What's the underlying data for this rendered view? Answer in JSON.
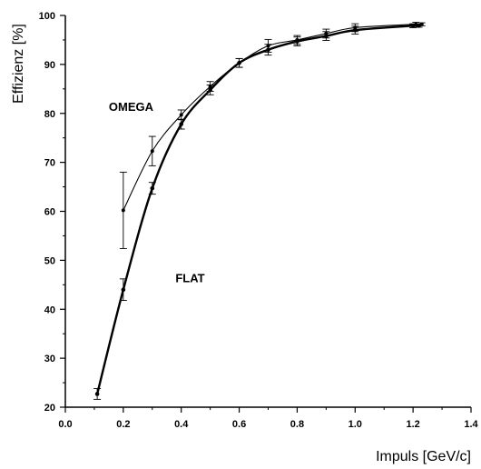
{
  "chart_data": {
    "type": "line",
    "xlabel": "Impuls [GeV/c]",
    "ylabel": "Effizienz [%]",
    "xlim": [
      0.0,
      1.4
    ],
    "ylim": [
      20,
      100
    ],
    "x_ticks": [
      "0.0",
      "0.2",
      "0.4",
      "0.6",
      "0.8",
      "1.0",
      "1.2",
      "1.4"
    ],
    "y_ticks": [
      "20",
      "30",
      "40",
      "50",
      "60",
      "70",
      "80",
      "90",
      "100"
    ],
    "grid": false,
    "series": [
      {
        "name": "OMEGA",
        "line": "thin",
        "points": [
          {
            "x": 0.2,
            "y": 60.2,
            "err": 7.8
          },
          {
            "x": 0.3,
            "y": 72.3,
            "err": 3.0
          },
          {
            "x": 0.4,
            "y": 79.7,
            "err": 1.0
          },
          {
            "x": 0.5,
            "y": 85.5,
            "err": 1.0
          },
          {
            "x": 0.6,
            "y": 90.3,
            "err": 0.9
          },
          {
            "x": 0.7,
            "y": 93.8,
            "err": 1.3
          },
          {
            "x": 0.8,
            "y": 95.0,
            "err": 0.9
          },
          {
            "x": 0.9,
            "y": 96.3,
            "err": 0.9
          },
          {
            "x": 1.0,
            "y": 97.5,
            "err": 0.8
          },
          {
            "x": 1.21,
            "y": 98.2,
            "err": 0.4
          },
          {
            "x": 1.23,
            "y": 98.2,
            "err": 0.3
          }
        ]
      },
      {
        "name": "FLAT",
        "line": "thick",
        "points": [
          {
            "x": 0.11,
            "y": 22.7,
            "err": 1.1
          },
          {
            "x": 0.2,
            "y": 44.0,
            "err": 2.2
          },
          {
            "x": 0.3,
            "y": 64.7,
            "err": 1.2
          },
          {
            "x": 0.4,
            "y": 77.8,
            "err": 1.0
          },
          {
            "x": 0.5,
            "y": 84.8,
            "err": 1.0
          },
          {
            "x": 0.6,
            "y": 90.3,
            "err": 0.9
          },
          {
            "x": 0.7,
            "y": 93.0,
            "err": 1.1
          },
          {
            "x": 0.8,
            "y": 94.7,
            "err": 0.9
          },
          {
            "x": 0.9,
            "y": 95.8,
            "err": 0.9
          },
          {
            "x": 1.0,
            "y": 97.0,
            "err": 0.8
          },
          {
            "x": 1.2,
            "y": 97.9,
            "err": 0.4
          },
          {
            "x": 1.22,
            "y": 97.9,
            "err": 0.3
          }
        ]
      }
    ],
    "annotations": [
      {
        "text": "OMEGA",
        "x": 0.15,
        "y": 80.5
      },
      {
        "text": "FLAT",
        "x": 0.38,
        "y": 45.5
      }
    ]
  }
}
